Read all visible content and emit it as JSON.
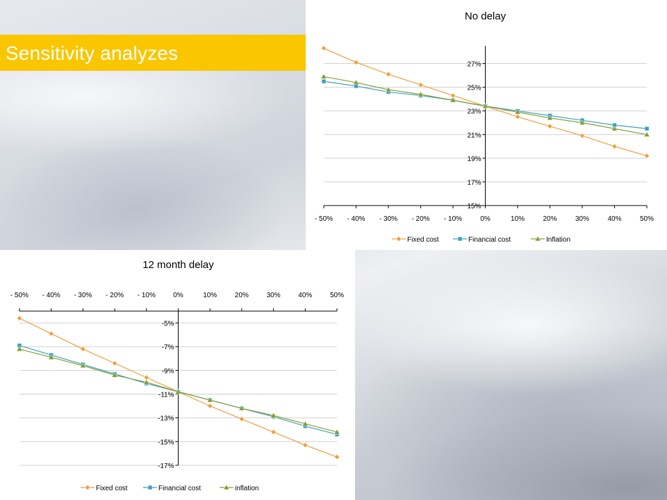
{
  "slide": {
    "title": "Sensitivity analyzes"
  },
  "colors": {
    "banner": "#f9c600",
    "fixed_cost": "#f39c3c",
    "financial_cost": "#3f9fbe",
    "inflation": "#7f9f35"
  },
  "chart_data": [
    {
      "type": "line",
      "title": "No delay",
      "x": [
        "- 50%",
        "- 40%",
        "- 30%",
        "- 20%",
        "- 10%",
        "0%",
        "10%",
        "20%",
        "30%",
        "40%",
        "50%"
      ],
      "x_numeric": [
        -50,
        -40,
        -30,
        -20,
        -10,
        0,
        10,
        20,
        30,
        40,
        50
      ],
      "y_ticks": [
        "15%",
        "17%",
        "19%",
        "21%",
        "23%",
        "25%",
        "27%"
      ],
      "ylim": [
        15,
        28.5
      ],
      "y_axis_at_x": 0,
      "x_tick_position": "bottom",
      "grid": true,
      "legend_position": "bottom",
      "series": [
        {
          "name": "Fixed cost",
          "marker": "diamond",
          "values": [
            28.3,
            27.1,
            26.1,
            25.2,
            24.3,
            23.4,
            22.5,
            21.7,
            20.9,
            20.0,
            19.2
          ]
        },
        {
          "name": "Financial cost",
          "marker": "square",
          "values": [
            25.5,
            25.1,
            24.6,
            24.3,
            23.9,
            23.4,
            23.0,
            22.6,
            22.2,
            21.8,
            21.5
          ]
        },
        {
          "name": "Inflation",
          "marker": "triangle",
          "values": [
            25.9,
            25.4,
            24.8,
            24.4,
            23.9,
            23.4,
            22.9,
            22.4,
            22.0,
            21.5,
            21.0
          ]
        }
      ]
    },
    {
      "type": "line",
      "title": "12 month delay",
      "x": [
        "- 50%",
        "- 40%",
        "- 30%",
        "- 20%",
        "- 10%",
        "0%",
        "10%",
        "20%",
        "30%",
        "40%",
        "50%"
      ],
      "x_numeric": [
        -50,
        -40,
        -30,
        -20,
        -10,
        0,
        10,
        20,
        30,
        40,
        50
      ],
      "y_ticks": [
        "-5%",
        "-7%",
        "-9%",
        "-11%",
        "-13%",
        "-15%",
        "-17%"
      ],
      "ylim": [
        -17,
        -4
      ],
      "y_axis_at_x": 0,
      "x_tick_position": "top",
      "grid": true,
      "legend_position": "bottom",
      "series": [
        {
          "name": "Fixed cost",
          "marker": "diamond",
          "values": [
            -4.6,
            -5.9,
            -7.2,
            -8.4,
            -9.6,
            -10.8,
            -12.0,
            -13.1,
            -14.2,
            -15.3,
            -16.3
          ]
        },
        {
          "name": "Financial cost",
          "marker": "square",
          "values": [
            -6.9,
            -7.7,
            -8.5,
            -9.3,
            -10.1,
            -10.8,
            -11.5,
            -12.2,
            -12.9,
            -13.7,
            -14.4
          ]
        },
        {
          "name": "inflation",
          "marker": "triangle",
          "values": [
            -7.2,
            -7.9,
            -8.6,
            -9.4,
            -10.0,
            -10.8,
            -11.5,
            -12.2,
            -12.8,
            -13.5,
            -14.2
          ]
        }
      ]
    }
  ]
}
